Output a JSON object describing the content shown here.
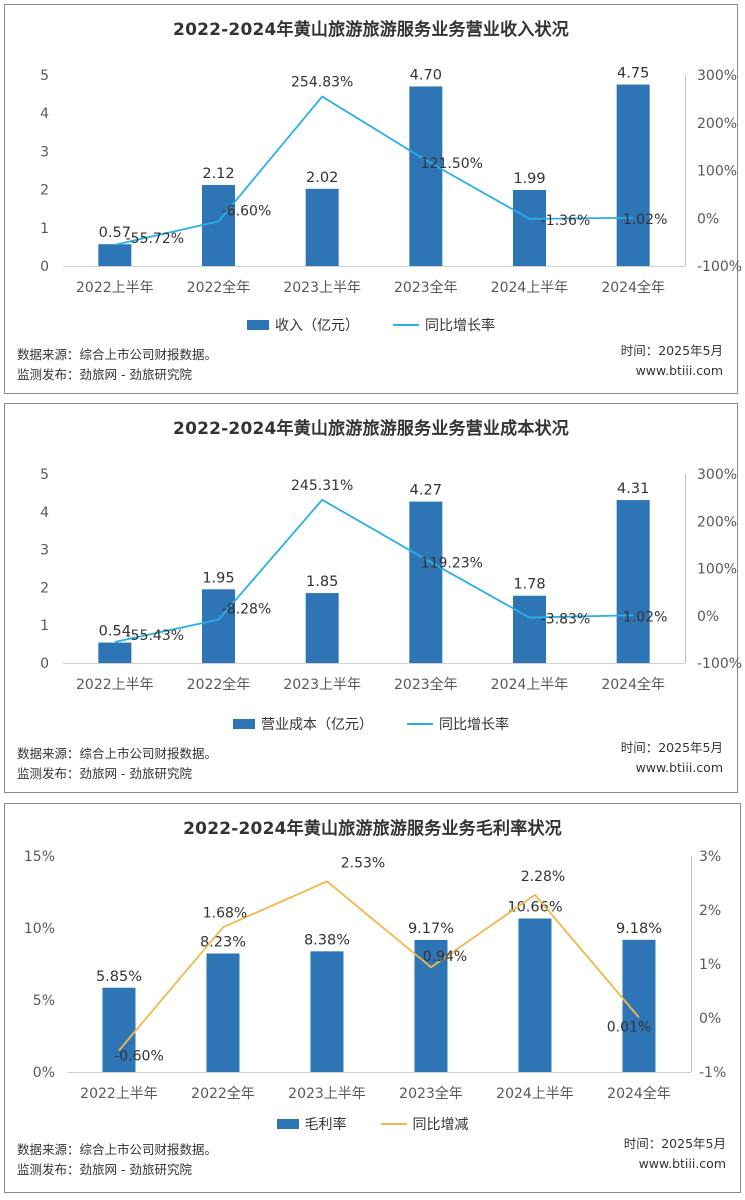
{
  "source_line": "数据来源：综合上市公司财报数据。",
  "publisher_line": "监测发布：劲旅网 - 劲旅研究院",
  "time_line": "时间：2025年5月",
  "site_line": "www.btiii.com",
  "colors": {
    "bar": "#2e75b6",
    "line_blue": "#2ab0e6",
    "line_orange": "#f2b84b"
  },
  "chart_data": [
    {
      "type": "bar",
      "title": "2022-2024年黄山旅游旅游服务业务营业收入状况",
      "categories": [
        "2022上半年",
        "2022全年",
        "2023上半年",
        "2023全年",
        "2024上半年",
        "2024全年"
      ],
      "ylim": [
        0,
        5
      ],
      "yticks": [
        "0",
        "1",
        "2",
        "3",
        "4",
        "5"
      ],
      "y2lim": [
        -100,
        300
      ],
      "y2ticks": [
        "-100%",
        "0%",
        "100%",
        "200%",
        "300%"
      ],
      "bar_series": {
        "name": "收入（亿元）",
        "values": [
          0.57,
          2.12,
          2.02,
          4.7,
          1.99,
          4.75
        ],
        "labels": [
          "0.57",
          "2.12",
          "2.02",
          "4.70",
          "1.99",
          "4.75"
        ]
      },
      "line_series": {
        "name": "同比增长率",
        "values": [
          -55.72,
          -6.6,
          254.83,
          121.5,
          -1.36,
          1.02
        ],
        "labels": [
          "-55.72%",
          "-6.60%",
          "254.83%",
          "121.50%",
          "-1.36%",
          "1.02%"
        ]
      },
      "line_color": "line_blue"
    },
    {
      "type": "bar",
      "title": "2022-2024年黄山旅游旅游服务业务营业成本状况",
      "categories": [
        "2022上半年",
        "2022全年",
        "2023上半年",
        "2023全年",
        "2024上半年",
        "2024全年"
      ],
      "ylim": [
        0,
        5
      ],
      "yticks": [
        "0",
        "1",
        "2",
        "3",
        "4",
        "5"
      ],
      "y2lim": [
        -100,
        300
      ],
      "y2ticks": [
        "-100%",
        "0%",
        "100%",
        "200%",
        "300%"
      ],
      "bar_series": {
        "name": "营业成本（亿元）",
        "values": [
          0.54,
          1.95,
          1.85,
          4.27,
          1.78,
          4.31
        ],
        "labels": [
          "0.54",
          "1.95",
          "1.85",
          "4.27",
          "1.78",
          "4.31"
        ]
      },
      "line_series": {
        "name": "同比增长率",
        "values": [
          -55.43,
          -8.28,
          245.31,
          119.23,
          -3.83,
          1.02
        ],
        "labels": [
          "-55.43%",
          "-8.28%",
          "245.31%",
          "119.23%",
          "-3.83%",
          "1.02%"
        ]
      },
      "line_color": "line_blue"
    },
    {
      "type": "bar",
      "title": "2022-2024年黄山旅游旅游服务业务毛利率状况",
      "categories": [
        "2022上半年",
        "2022全年",
        "2023上半年",
        "2023全年",
        "2024上半年",
        "2024全年"
      ],
      "ylim": [
        0,
        15
      ],
      "yticks": [
        "0%",
        "5%",
        "10%",
        "15%"
      ],
      "y2lim": [
        -1,
        3
      ],
      "y2ticks": [
        "-1%",
        "0%",
        "1%",
        "2%",
        "3%"
      ],
      "bar_series": {
        "name": "毛利率",
        "values": [
          5.85,
          8.23,
          8.38,
          9.17,
          10.66,
          9.18
        ],
        "labels": [
          "5.85%",
          "8.23%",
          "8.38%",
          "9.17%",
          "10.66%",
          "9.18%"
        ]
      },
      "line_series": {
        "name": "同比增减",
        "values": [
          -0.6,
          1.68,
          2.53,
          0.94,
          2.28,
          0.01
        ],
        "labels": [
          "-0.60%",
          "1.68%",
          "2.53%",
          "0.94%",
          "2.28%",
          "0.01%"
        ]
      },
      "line_color": "line_orange"
    }
  ]
}
